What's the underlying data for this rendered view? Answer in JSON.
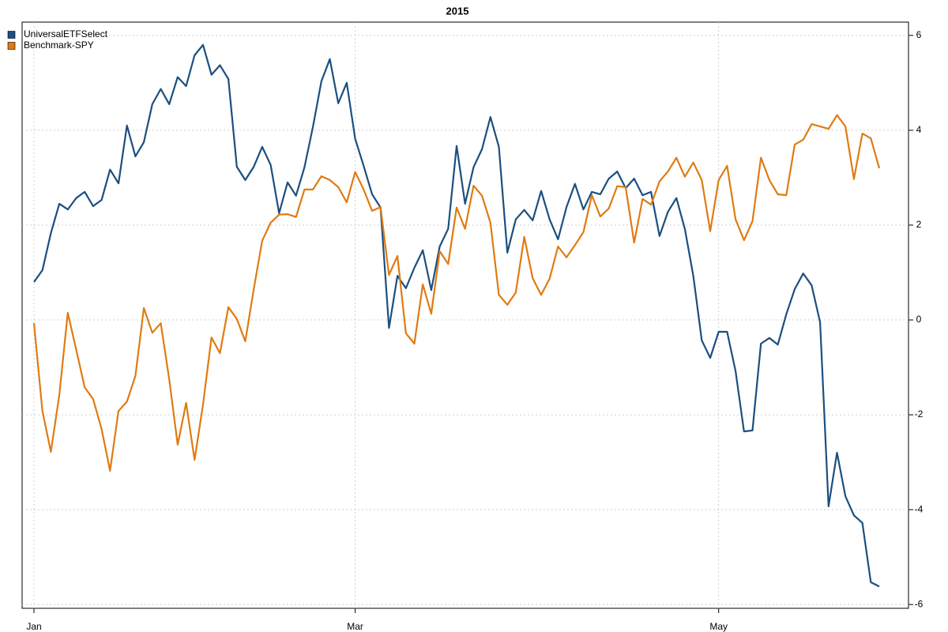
{
  "chart_data": {
    "type": "line",
    "title": "2015",
    "categories": [
      "Jan",
      null,
      null,
      null,
      null,
      null,
      null,
      null,
      null,
      null,
      null,
      null,
      null,
      null,
      null,
      null,
      null,
      null,
      null,
      null,
      null,
      null,
      null,
      null,
      null,
      null,
      null,
      null,
      null,
      null,
      null,
      null,
      null,
      null,
      null,
      null,
      null,
      null,
      "Mar",
      null,
      null,
      null,
      null,
      null,
      null,
      null,
      null,
      null,
      null,
      null,
      null,
      null,
      null,
      null,
      null,
      null,
      null,
      null,
      null,
      null,
      null,
      null,
      null,
      null,
      null,
      null,
      null,
      null,
      null,
      null,
      null,
      null,
      null,
      null,
      null,
      null,
      null,
      null,
      null,
      null,
      null,
      "May",
      null,
      null,
      null,
      null,
      null,
      null,
      null,
      null,
      null,
      null,
      null,
      null,
      null,
      null,
      null,
      null,
      null,
      null,
      null
    ],
    "series": [
      {
        "name": "UniversalETFSelect",
        "color": "#1b4f80",
        "values": [
          0.8,
          1.05,
          1.83,
          2.45,
          2.33,
          2.57,
          2.7,
          2.4,
          2.53,
          3.17,
          2.88,
          4.1,
          3.45,
          3.75,
          4.55,
          4.87,
          4.55,
          5.12,
          4.93,
          5.58,
          5.8,
          5.17,
          5.37,
          5.08,
          3.23,
          2.95,
          3.23,
          3.65,
          3.27,
          2.25,
          2.9,
          2.62,
          3.22,
          4.07,
          5.03,
          5.5,
          4.57,
          5.0,
          3.82,
          3.25,
          2.65,
          2.37,
          -0.17,
          0.93,
          0.67,
          1.1,
          1.47,
          0.63,
          1.55,
          1.92,
          3.67,
          2.45,
          3.22,
          3.6,
          4.28,
          3.65,
          1.42,
          2.12,
          2.32,
          2.1,
          2.72,
          2.12,
          1.7,
          2.38,
          2.87,
          2.33,
          2.7,
          2.65,
          2.98,
          3.13,
          2.78,
          2.98,
          2.63,
          2.7,
          1.77,
          2.28,
          2.57,
          1.92,
          0.93,
          -0.43,
          -0.8,
          -0.25,
          -0.25,
          -1.08,
          -2.35,
          -2.33,
          -0.5,
          -0.38,
          -0.52,
          0.12,
          0.65,
          0.98,
          0.73,
          -0.05,
          -3.93,
          -2.8,
          -3.72,
          -4.12,
          -4.28,
          -5.53,
          -5.62
        ]
      },
      {
        "name": "Benchmark-SPY",
        "color": "#e07b12",
        "values": [
          -0.07,
          -1.92,
          -2.78,
          -1.58,
          0.15,
          -0.63,
          -1.42,
          -1.67,
          -2.3,
          -3.18,
          -1.92,
          -1.72,
          -1.18,
          0.25,
          -0.27,
          -0.07,
          -1.25,
          -2.63,
          -1.75,
          -2.95,
          -1.78,
          -0.37,
          -0.7,
          0.27,
          0.02,
          -0.45,
          0.65,
          1.67,
          2.05,
          2.22,
          2.23,
          2.17,
          2.75,
          2.75,
          3.03,
          2.95,
          2.8,
          2.48,
          3.12,
          2.75,
          2.3,
          2.38,
          0.95,
          1.35,
          -0.28,
          -0.5,
          0.75,
          0.13,
          1.45,
          1.18,
          2.37,
          1.92,
          2.83,
          2.62,
          2.05,
          0.53,
          0.32,
          0.58,
          1.75,
          0.88,
          0.53,
          0.87,
          1.55,
          1.32,
          1.58,
          1.85,
          2.63,
          2.18,
          2.35,
          2.82,
          2.8,
          1.63,
          2.55,
          2.43,
          2.92,
          3.13,
          3.42,
          3.02,
          3.32,
          2.95,
          1.87,
          2.95,
          3.25,
          2.12,
          1.68,
          2.08,
          3.42,
          2.95,
          2.65,
          2.63,
          3.7,
          3.8,
          4.13,
          4.08,
          4.03,
          4.32,
          4.08,
          2.97,
          3.93,
          3.83,
          3.2
        ]
      }
    ],
    "ylim": [
      -6.08,
      6.28
    ],
    "yticks": [
      -6,
      -4,
      -2,
      0,
      2,
      4,
      6
    ],
    "y_axis_side": "right",
    "grid": true,
    "legend": "top-left"
  }
}
